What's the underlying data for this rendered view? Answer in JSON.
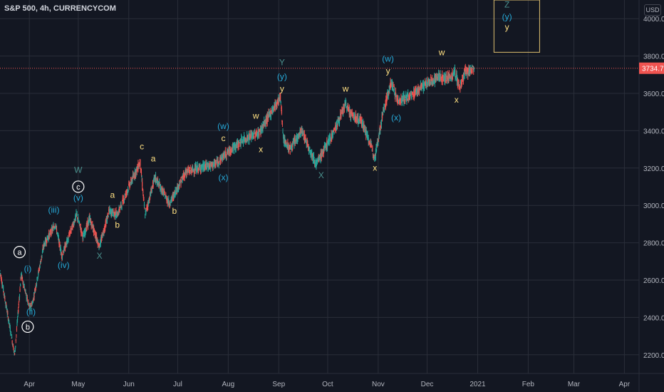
{
  "header": {
    "title": "S&P 500, 4h, CURRENCYCOM",
    "currency": "USD"
  },
  "colors": {
    "background": "#131722",
    "grid": "#2a2e39",
    "axis_text": "#b2b5be",
    "up": "#26a69a",
    "down": "#ef5350",
    "price_line": "#ef5350",
    "label_yellow": "#ffe082",
    "label_cyan": "#26a9d8",
    "label_white": "#ffffff",
    "label_gray": "#4a8f8c"
  },
  "chart_data": {
    "type": "candlestick",
    "instrument": "S&P 500",
    "timeframe": "4h",
    "source": "CURRENCYCOM",
    "current_price": 3734.7,
    "current_price_label": "3734.7",
    "ylim": [
      2100,
      4100
    ],
    "y_ticks": [
      {
        "value": 2200,
        "label": "2200.0"
      },
      {
        "value": 2400,
        "label": "2400.0"
      },
      {
        "value": 2600,
        "label": "2600.0"
      },
      {
        "value": 2800,
        "label": "2800.0"
      },
      {
        "value": 3000,
        "label": "3000.0"
      },
      {
        "value": 3200,
        "label": "3200.0"
      },
      {
        "value": 3400,
        "label": "3400.0"
      },
      {
        "value": 3600,
        "label": "3600.0"
      },
      {
        "value": 3800,
        "label": "3800.0"
      },
      {
        "value": 4000,
        "label": "4000.0"
      }
    ],
    "x_range": [
      "2020-03-14",
      "2021-04-10"
    ],
    "x_ticks": [
      {
        "date": "2020-04-01",
        "label": "Apr"
      },
      {
        "date": "2020-05-01",
        "label": "May"
      },
      {
        "date": "2020-06-01",
        "label": "Jun"
      },
      {
        "date": "2020-07-01",
        "label": "Jul"
      },
      {
        "date": "2020-08-01",
        "label": "Aug"
      },
      {
        "date": "2020-09-01",
        "label": "Sep"
      },
      {
        "date": "2020-10-01",
        "label": "Oct"
      },
      {
        "date": "2020-11-01",
        "label": "Nov"
      },
      {
        "date": "2020-12-01",
        "label": "Dec"
      },
      {
        "date": "2021-01-01",
        "label": "2021"
      },
      {
        "date": "2021-02-01",
        "label": "Feb"
      },
      {
        "date": "2021-03-01",
        "label": "Mar"
      },
      {
        "date": "2021-04-01",
        "label": "Apr"
      }
    ],
    "price_path": [
      {
        "date": "2020-03-14",
        "price": 2650
      },
      {
        "date": "2020-03-23",
        "price": 2200
      },
      {
        "date": "2020-03-27",
        "price": 2630
      },
      {
        "date": "2020-04-01",
        "price": 2450
      },
      {
        "date": "2020-04-03",
        "price": 2480
      },
      {
        "date": "2020-04-10",
        "price": 2790
      },
      {
        "date": "2020-04-17",
        "price": 2900
      },
      {
        "date": "2020-04-21",
        "price": 2730
      },
      {
        "date": "2020-04-30",
        "price": 2950
      },
      {
        "date": "2020-05-04",
        "price": 2830
      },
      {
        "date": "2020-05-08",
        "price": 2930
      },
      {
        "date": "2020-05-14",
        "price": 2780
      },
      {
        "date": "2020-05-20",
        "price": 2970
      },
      {
        "date": "2020-05-25",
        "price": 2950
      },
      {
        "date": "2020-06-01",
        "price": 3100
      },
      {
        "date": "2020-06-08",
        "price": 3230
      },
      {
        "date": "2020-06-11",
        "price": 2950
      },
      {
        "date": "2020-06-17",
        "price": 3150
      },
      {
        "date": "2020-06-26",
        "price": 3010
      },
      {
        "date": "2020-07-06",
        "price": 3180
      },
      {
        "date": "2020-07-14",
        "price": 3200
      },
      {
        "date": "2020-07-24",
        "price": 3220
      },
      {
        "date": "2020-07-31",
        "price": 3280
      },
      {
        "date": "2020-08-10",
        "price": 3350
      },
      {
        "date": "2020-08-20",
        "price": 3390
      },
      {
        "date": "2020-08-28",
        "price": 3510
      },
      {
        "date": "2020-09-02",
        "price": 3580
      },
      {
        "date": "2020-09-04",
        "price": 3350
      },
      {
        "date": "2020-09-08",
        "price": 3300
      },
      {
        "date": "2020-09-15",
        "price": 3400
      },
      {
        "date": "2020-09-24",
        "price": 3220
      },
      {
        "date": "2020-10-05",
        "price": 3400
      },
      {
        "date": "2020-10-12",
        "price": 3540
      },
      {
        "date": "2020-10-16",
        "price": 3480
      },
      {
        "date": "2020-10-22",
        "price": 3450
      },
      {
        "date": "2020-10-30",
        "price": 3260
      },
      {
        "date": "2020-11-04",
        "price": 3500
      },
      {
        "date": "2020-11-09",
        "price": 3660
      },
      {
        "date": "2020-11-13",
        "price": 3560
      },
      {
        "date": "2020-11-20",
        "price": 3580
      },
      {
        "date": "2020-11-27",
        "price": 3630
      },
      {
        "date": "2020-12-08",
        "price": 3690
      },
      {
        "date": "2020-12-14",
        "price": 3680
      },
      {
        "date": "2020-12-18",
        "price": 3710
      },
      {
        "date": "2020-12-21",
        "price": 3630
      },
      {
        "date": "2020-12-24",
        "price": 3710
      },
      {
        "date": "2020-12-30",
        "price": 3734.7
      }
    ],
    "wave_labels": [
      {
        "text": "a",
        "date": "2020-03-26",
        "price": 2735,
        "color": "label_white",
        "circle": true
      },
      {
        "text": "(i)",
        "date": "2020-03-31",
        "price": 2645,
        "color": "label_cyan"
      },
      {
        "text": "(ii)",
        "date": "2020-04-02",
        "price": 2415,
        "color": "label_cyan"
      },
      {
        "text": "b",
        "date": "2020-03-31",
        "price": 2335,
        "color": "label_white",
        "circle": true
      },
      {
        "text": "(iii)",
        "date": "2020-04-16",
        "price": 2960,
        "color": "label_cyan"
      },
      {
        "text": "(iv)",
        "date": "2020-04-22",
        "price": 2665,
        "color": "label_cyan"
      },
      {
        "text": "W",
        "date": "2020-05-01",
        "price": 3175,
        "color": "label_gray"
      },
      {
        "text": "c",
        "date": "2020-05-01",
        "price": 3085,
        "color": "label_white",
        "circle": true
      },
      {
        "text": "(v)",
        "date": "2020-05-01",
        "price": 3025,
        "color": "label_cyan"
      },
      {
        "text": "X",
        "date": "2020-05-14",
        "price": 2715,
        "color": "label_gray"
      },
      {
        "text": "a",
        "date": "2020-05-22",
        "price": 3040,
        "color": "label_yellow"
      },
      {
        "text": "b",
        "date": "2020-05-25",
        "price": 2880,
        "color": "label_yellow"
      },
      {
        "text": "c",
        "date": "2020-06-09",
        "price": 3300,
        "color": "label_yellow"
      },
      {
        "text": "a",
        "date": "2020-06-16",
        "price": 3235,
        "color": "label_yellow"
      },
      {
        "text": "b",
        "date": "2020-06-29",
        "price": 2955,
        "color": "label_yellow"
      },
      {
        "text": "(w)",
        "date": "2020-07-29",
        "price": 3410,
        "color": "label_cyan"
      },
      {
        "text": "c",
        "date": "2020-07-29",
        "price": 3345,
        "color": "label_yellow"
      },
      {
        "text": "(x)",
        "date": "2020-07-29",
        "price": 3135,
        "color": "label_cyan"
      },
      {
        "text": "w",
        "date": "2020-08-18",
        "price": 3465,
        "color": "label_yellow"
      },
      {
        "text": "x",
        "date": "2020-08-21",
        "price": 3285,
        "color": "label_yellow"
      },
      {
        "text": "Y",
        "date": "2020-09-03",
        "price": 3750,
        "color": "label_gray"
      },
      {
        "text": "(y)",
        "date": "2020-09-03",
        "price": 3675,
        "color": "label_cyan"
      },
      {
        "text": "y",
        "date": "2020-09-03",
        "price": 3610,
        "color": "label_yellow"
      },
      {
        "text": "X",
        "date": "2020-09-27",
        "price": 3145,
        "color": "label_gray"
      },
      {
        "text": "w",
        "date": "2020-10-12",
        "price": 3610,
        "color": "label_yellow"
      },
      {
        "text": "x",
        "date": "2020-10-30",
        "price": 3185,
        "color": "label_yellow"
      },
      {
        "text": "(w)",
        "date": "2020-11-07",
        "price": 3770,
        "color": "label_cyan"
      },
      {
        "text": "y",
        "date": "2020-11-07",
        "price": 3705,
        "color": "label_yellow"
      },
      {
        "text": "(x)",
        "date": "2020-11-12",
        "price": 3455,
        "color": "label_cyan"
      },
      {
        "text": "w",
        "date": "2020-12-10",
        "price": 3805,
        "color": "label_yellow"
      },
      {
        "text": "x",
        "date": "2020-12-19",
        "price": 3550,
        "color": "label_yellow"
      },
      {
        "text": "Z",
        "date": "2021-01-19",
        "price": 4060,
        "color": "label_gray"
      },
      {
        "text": "(y)",
        "date": "2021-01-19",
        "price": 3995,
        "color": "label_cyan"
      },
      {
        "text": "y",
        "date": "2021-01-19",
        "price": 3940,
        "color": "label_yellow"
      }
    ],
    "target_box": {
      "date_from": "2021-01-11",
      "date_to": "2021-02-08",
      "price_from": 3820,
      "price_to": 4100
    },
    "grid": true,
    "legend": "none"
  }
}
